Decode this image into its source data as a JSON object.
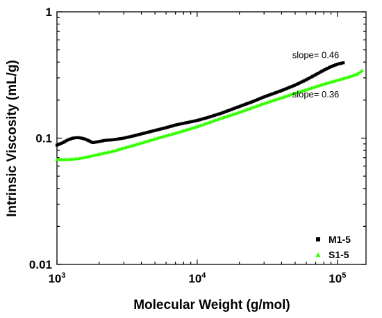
{
  "chart_data": {
    "type": "scatter",
    "xlabel": "Molecular Weight (g/mol)",
    "ylabel": "Intrinsic Viscosity (mL/g)",
    "x_scale": "log",
    "y_scale": "log",
    "xlim": [
      1000,
      160000
    ],
    "ylim": [
      0.01,
      1
    ],
    "x_ticks": [
      {
        "value": 1000,
        "base": "10",
        "exp": "3"
      },
      {
        "value": 10000,
        "base": "10",
        "exp": "4"
      },
      {
        "value": 100000,
        "base": "10",
        "exp": "5"
      }
    ],
    "y_ticks": [
      {
        "value": 0.01,
        "label": "0.01"
      },
      {
        "value": 0.1,
        "label": "0.1"
      },
      {
        "value": 1,
        "label": "1"
      }
    ],
    "grid": false,
    "legend_position": "bottom-right",
    "series": [
      {
        "name": "M1-5",
        "marker": "square",
        "color": "#000000",
        "x": [
          1000,
          1100,
          1200,
          1300,
          1400,
          1500,
          1600,
          1700,
          1800,
          1900,
          2000,
          2200,
          2500,
          3000,
          3500,
          4000,
          5000,
          6000,
          7000,
          8000,
          10000,
          12000,
          15000,
          20000,
          25000,
          30000,
          40000,
          50000,
          60000,
          70000,
          80000,
          90000,
          100000,
          110000
        ],
        "y": [
          0.088,
          0.092,
          0.097,
          0.1,
          0.101,
          0.1,
          0.098,
          0.095,
          0.092,
          0.093,
          0.094,
          0.096,
          0.097,
          0.1,
          0.104,
          0.108,
          0.115,
          0.121,
          0.127,
          0.131,
          0.138,
          0.146,
          0.158,
          0.178,
          0.195,
          0.212,
          0.238,
          0.263,
          0.29,
          0.318,
          0.345,
          0.368,
          0.385,
          0.395
        ]
      },
      {
        "name": "S1-5",
        "marker": "triangle",
        "color": "#33ff00",
        "x": [
          1000,
          1200,
          1400,
          1600,
          1800,
          2000,
          2500,
          3000,
          3500,
          4000,
          5000,
          6000,
          7000,
          8000,
          10000,
          12000,
          15000,
          20000,
          25000,
          30000,
          40000,
          50000,
          60000,
          70000,
          80000,
          100000,
          120000,
          140000,
          150000
        ],
        "y": [
          0.068,
          0.068,
          0.069,
          0.071,
          0.073,
          0.075,
          0.079,
          0.084,
          0.088,
          0.092,
          0.099,
          0.105,
          0.11,
          0.115,
          0.124,
          0.133,
          0.145,
          0.161,
          0.176,
          0.189,
          0.21,
          0.228,
          0.243,
          0.257,
          0.269,
          0.289,
          0.306,
          0.325,
          0.345
        ]
      }
    ],
    "annotations": [
      {
        "text": "slope= 0.46",
        "x": 70000,
        "y": 0.43
      },
      {
        "text": "slope= 0.36",
        "x": 70000,
        "y": 0.21
      }
    ]
  }
}
